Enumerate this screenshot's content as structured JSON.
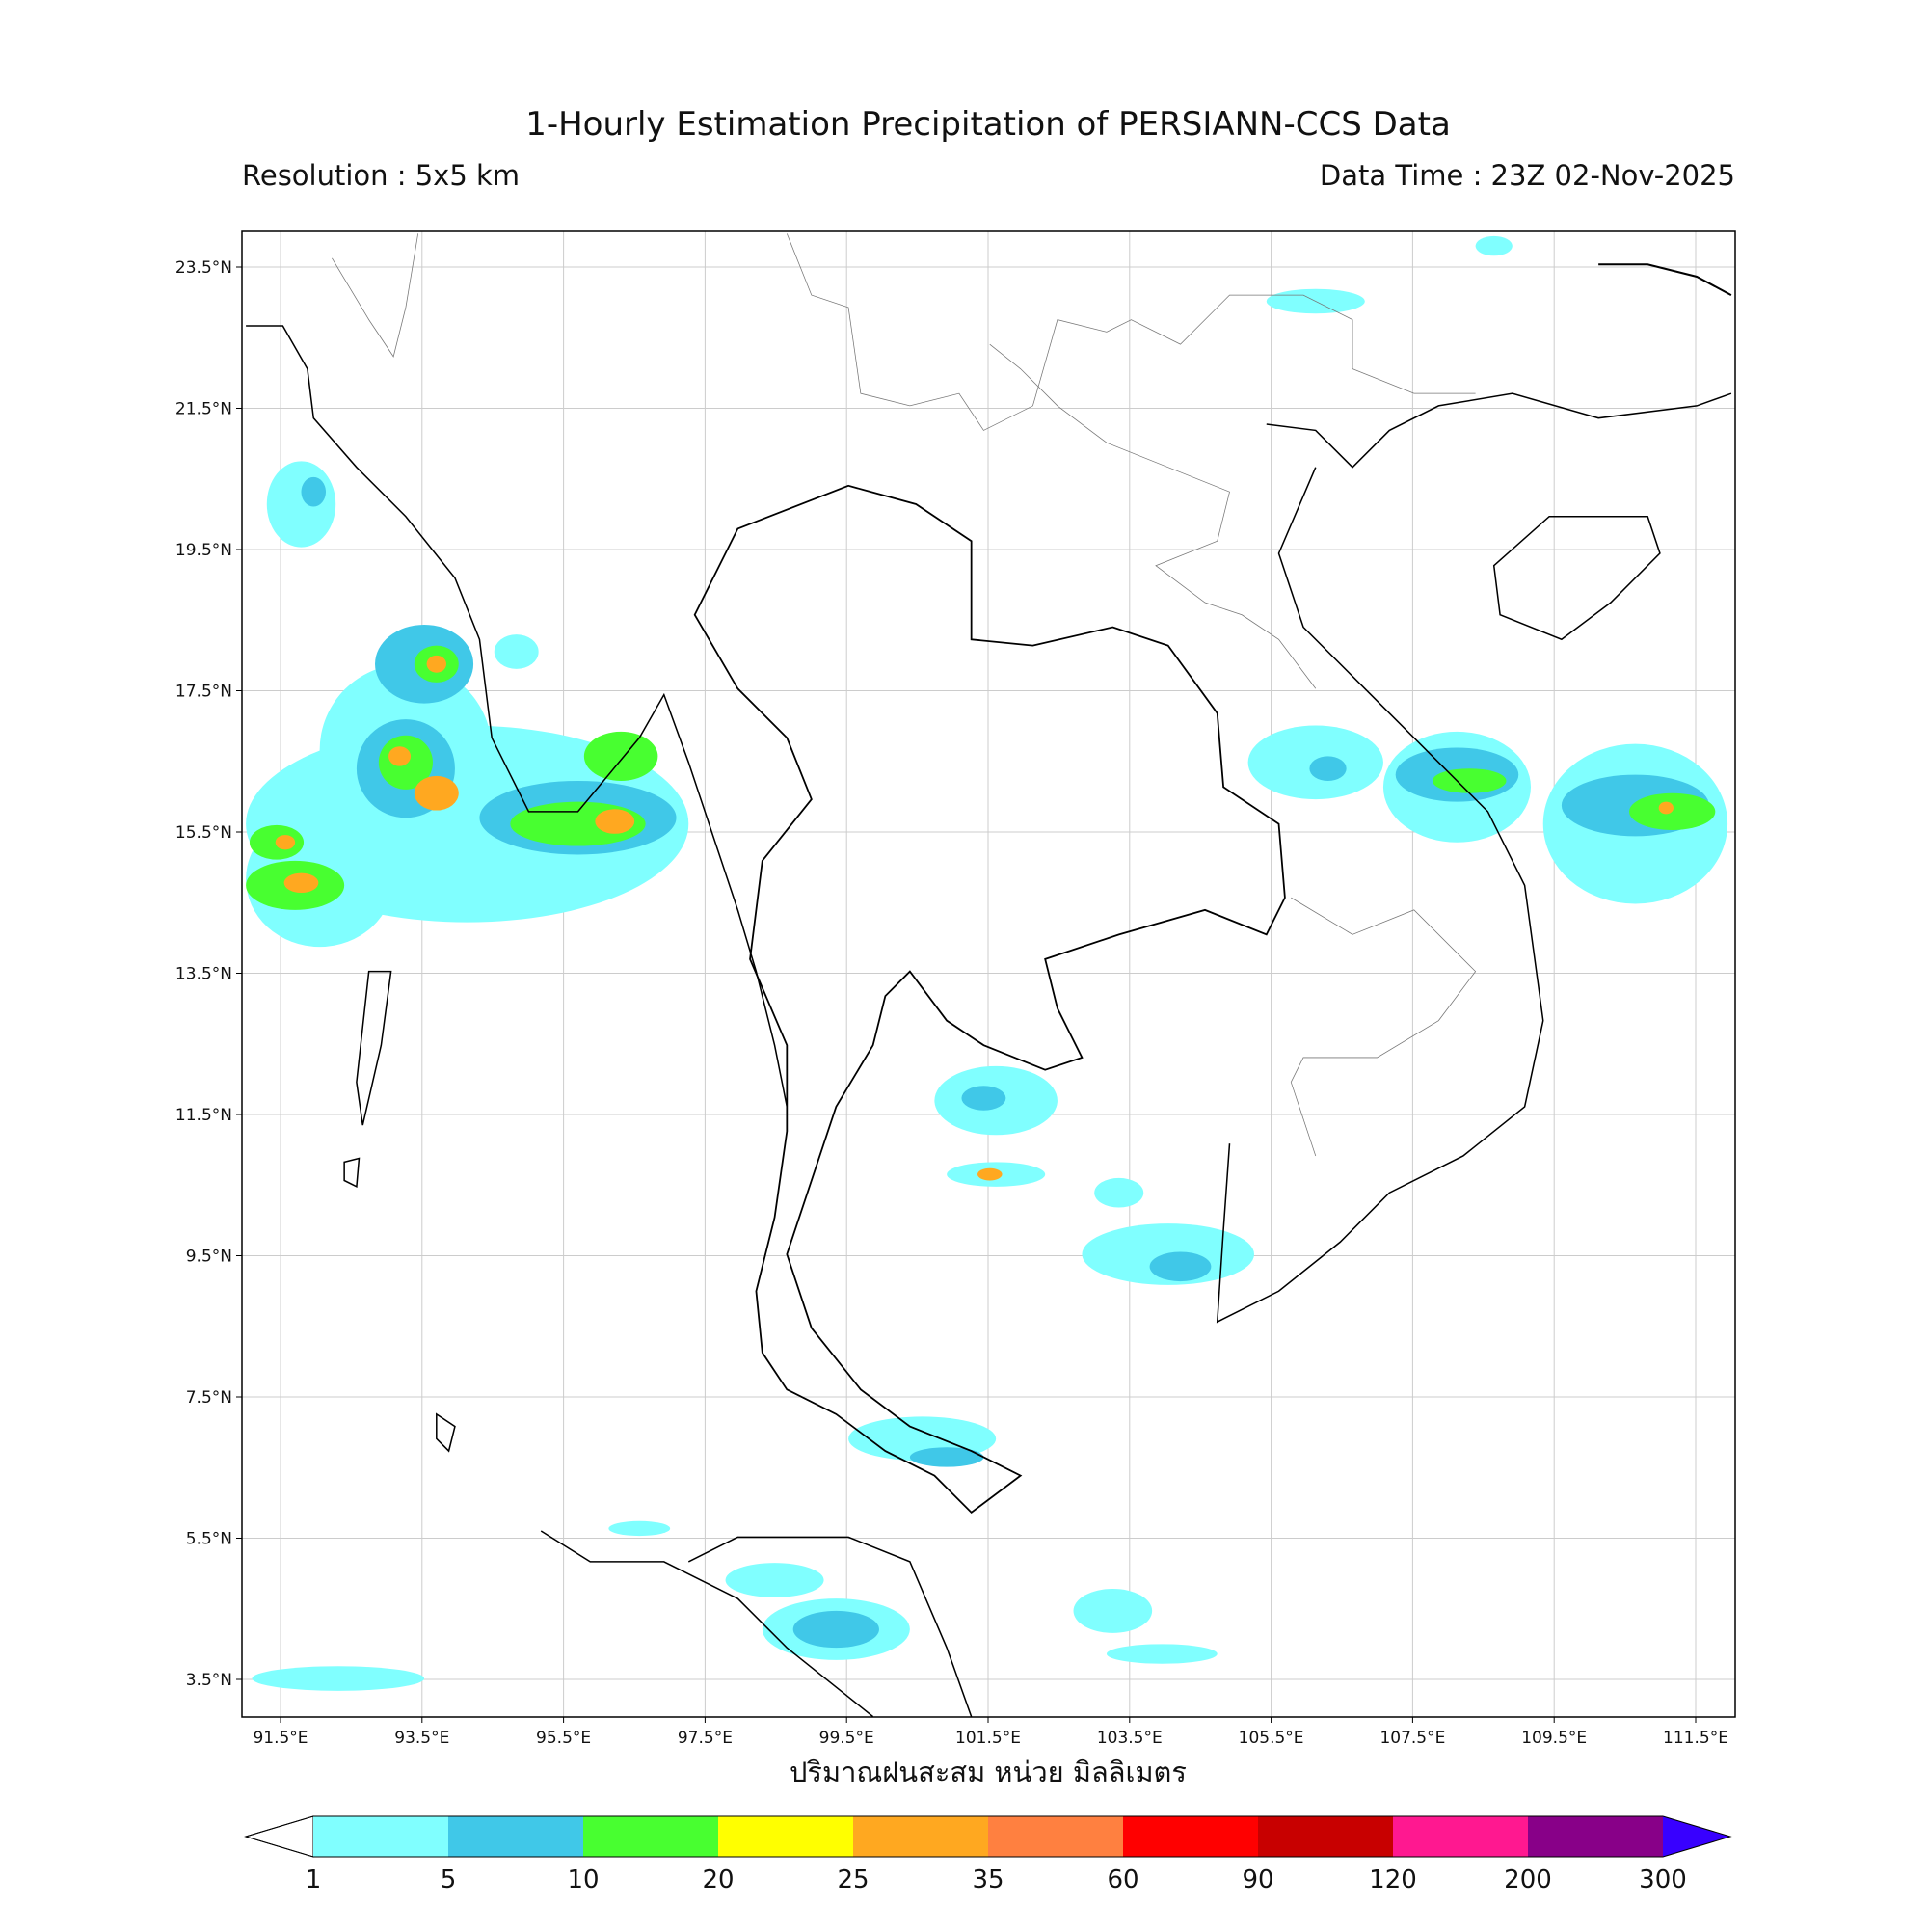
{
  "map": {
    "title": "1-Hourly Estimation Precipitation of PERSIANN-CCS Data",
    "resolution": "Resolution : 5x5 km",
    "data_time": "Data Time : 23Z 02-Nov-2025",
    "x_label": "ปริมาณฝนสะสม หน่วย มิลลิเมตร",
    "lon_ticks": [
      {
        "value": 91.5,
        "label": "91.5°E"
      },
      {
        "value": 93.5,
        "label": "93.5°E"
      },
      {
        "value": 95.5,
        "label": "95.5°E"
      },
      {
        "value": 97.5,
        "label": "97.5°E"
      },
      {
        "value": 99.5,
        "label": "99.5°E"
      },
      {
        "value": 101.5,
        "label": "101.5°E"
      },
      {
        "value": 103.5,
        "label": "103.5°E"
      },
      {
        "value": 105.5,
        "label": "105.5°E"
      },
      {
        "value": 107.5,
        "label": "107.5°E"
      },
      {
        "value": 109.5,
        "label": "109.5°E"
      },
      {
        "value": 111.5,
        "label": "111.5°E"
      }
    ],
    "lat_ticks": [
      {
        "value": 23.5,
        "label": "23.5°N"
      },
      {
        "value": 21.5,
        "label": "21.5°N"
      },
      {
        "value": 19.5,
        "label": "19.5°N"
      },
      {
        "value": 17.5,
        "label": "17.5°N"
      },
      {
        "value": 15.5,
        "label": "15.5°N"
      },
      {
        "value": 13.5,
        "label": "13.5°N"
      },
      {
        "value": 11.5,
        "label": "11.5°N"
      },
      {
        "value": 9.5,
        "label": "9.5°N"
      },
      {
        "value": 7.5,
        "label": "7.5°N"
      },
      {
        "value": 5.5,
        "label": "5.5°N"
      },
      {
        "value": 3.5,
        "label": "3.5°N"
      }
    ],
    "colorbar": {
      "levels": [
        1,
        5,
        10,
        20,
        25,
        35,
        60,
        90,
        120,
        200,
        300
      ],
      "colors": [
        "#80ffff",
        "#40c8e8",
        "#48ff30",
        "#ffff00",
        "#ffa820",
        "#ff8040",
        "#ff0000",
        "#c80000",
        "#ff1890",
        "#880088"
      ],
      "extend_color": "#3800ff"
    }
  }
}
